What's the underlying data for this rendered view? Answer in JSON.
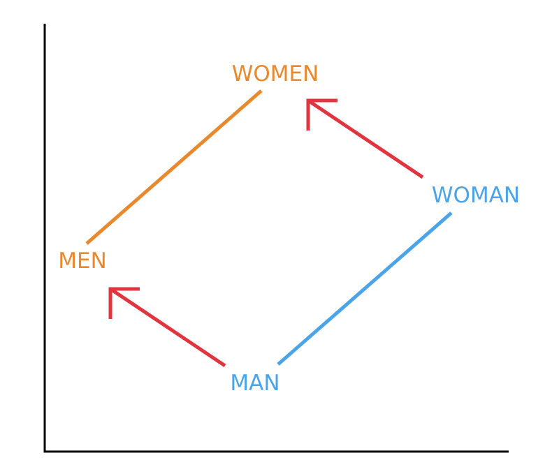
{
  "words": {
    "women": "WOMEN",
    "woman": "WOMAN",
    "men": "MEN",
    "man": "MAN"
  },
  "colors": {
    "plural": "#e8892e",
    "singular": "#4ba3e8",
    "arrow": "#e0343e",
    "axis": "#000000"
  }
}
